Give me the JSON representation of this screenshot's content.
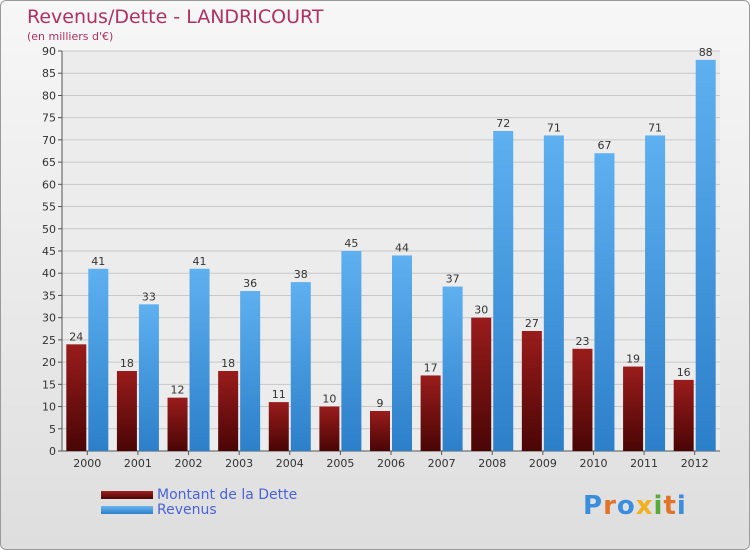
{
  "title": "Revenus/Dette - LANDRICOURT",
  "subtitle": "(en milliers d'€)",
  "logo": "Proxiti",
  "colors": {
    "dette": "#7a1010",
    "revenus": "#3d9ae6",
    "title": "#b03060",
    "legend_text": "#4a63d8"
  },
  "chart_data": {
    "type": "bar",
    "categories": [
      "2000",
      "2001",
      "2002",
      "2003",
      "2004",
      "2005",
      "2006",
      "2007",
      "2008",
      "2009",
      "2010",
      "2011",
      "2012"
    ],
    "series": [
      {
        "name": "Montant de la Dette",
        "values": [
          24,
          18,
          12,
          18,
          11,
          10,
          9,
          17,
          30,
          27,
          23,
          19,
          16
        ]
      },
      {
        "name": "Revenus",
        "values": [
          41,
          33,
          41,
          36,
          38,
          45,
          44,
          37,
          72,
          71,
          67,
          71,
          88
        ]
      }
    ],
    "ylim": [
      0,
      90
    ],
    "yticks": [
      0,
      5,
      10,
      15,
      20,
      25,
      30,
      35,
      40,
      45,
      50,
      55,
      60,
      65,
      70,
      75,
      80,
      85,
      90
    ],
    "grid": true,
    "legend": "bottom-left"
  }
}
